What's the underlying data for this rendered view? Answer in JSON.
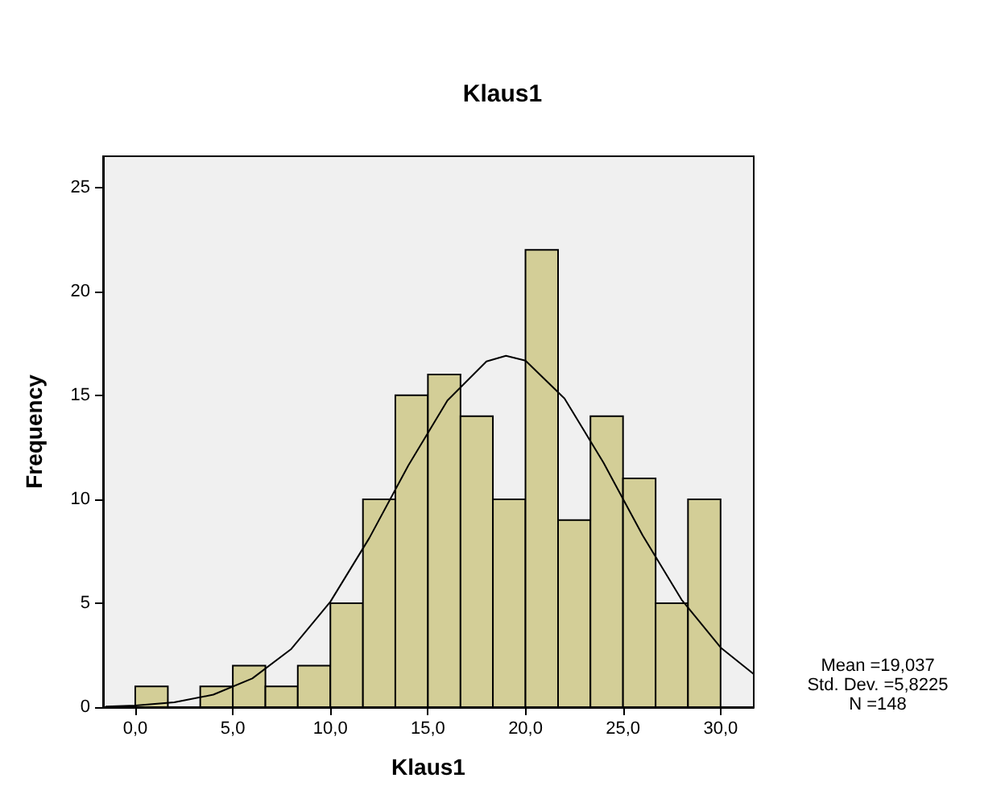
{
  "chart_data": {
    "type": "histogram",
    "title": "Klaus1",
    "xlabel": "Klaus1",
    "ylabel": "Frequency",
    "xlim": [
      -1.65,
      31.7
    ],
    "ylim": [
      0,
      26.5
    ],
    "xticks": [
      {
        "value": 0,
        "label": "0,0"
      },
      {
        "value": 5,
        "label": "5,0"
      },
      {
        "value": 10,
        "label": "10,0"
      },
      {
        "value": 15,
        "label": "15,0"
      },
      {
        "value": 20,
        "label": "20,0"
      },
      {
        "value": 25,
        "label": "25,0"
      },
      {
        "value": 30,
        "label": "30,0"
      }
    ],
    "yticks": [
      0,
      5,
      10,
      15,
      20,
      25
    ],
    "grid": false,
    "series": [
      {
        "color": "#d3ce97",
        "bins": [
          0,
          1.67,
          3.33,
          5,
          6.67,
          8.33,
          10,
          11.67,
          13.33,
          15,
          16.67,
          18.33,
          20,
          21.67,
          23.33,
          25,
          26.67,
          28.33,
          30
        ],
        "values": [
          1,
          0,
          1,
          2,
          1,
          2,
          5,
          10,
          15,
          16,
          14,
          10,
          22,
          9,
          14,
          11,
          5,
          10
        ]
      },
      {
        "type": "line",
        "color": "#000000",
        "marker": "none",
        "x": [
          -1.5,
          0,
          2,
          4,
          6,
          8,
          10,
          12,
          14,
          16,
          18,
          19,
          20,
          22,
          24,
          26,
          28,
          30,
          31.7
        ],
        "values": [
          0.03,
          0.08,
          0.23,
          0.6,
          1.38,
          2.8,
          5.07,
          8.14,
          11.63,
          14.75,
          16.63,
          16.9,
          16.67,
          14.85,
          11.76,
          8.27,
          5.17,
          2.87,
          1.59
        ]
      }
    ],
    "annotations": [
      "Mean =19,037",
      "Std. Dev. =5,8225",
      "N =148"
    ]
  }
}
